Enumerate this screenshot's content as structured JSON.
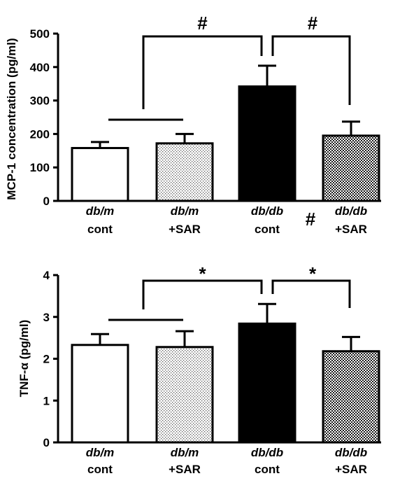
{
  "chart_data": [
    {
      "type": "bar",
      "title": "",
      "xlabel": "",
      "ylabel": "MCP-1  concentration  (pg/ml)",
      "ylim": [
        0,
        500
      ],
      "yticks": [
        "0",
        "100",
        "200",
        "300",
        "400",
        "500"
      ],
      "categories": [
        {
          "line1": "db/m",
          "line2": "cont"
        },
        {
          "line1": "db/m",
          "line2": "+SAR"
        },
        {
          "line1": "db/db",
          "line2": "cont"
        },
        {
          "line1": "db/db",
          "line2": "+SAR"
        }
      ],
      "values": [
        158,
        172,
        342,
        195
      ],
      "errors": [
        18,
        28,
        62,
        42
      ],
      "fills": [
        "white",
        "dots",
        "black",
        "checker"
      ],
      "significance": [
        {
          "symbol": "#",
          "from_group": 0.5,
          "to_group": 2
        },
        {
          "symbol": "#",
          "from_group": 2,
          "to_group": 3
        }
      ],
      "extra_marks": [
        {
          "symbol": "#",
          "between": [
            2,
            3
          ]
        }
      ]
    },
    {
      "type": "bar",
      "title": "",
      "xlabel": "",
      "ylabel": "TNF-α  (pg/ml)",
      "ylim": [
        0,
        4
      ],
      "yticks": [
        "0",
        "1",
        "2",
        "3",
        "4"
      ],
      "categories": [
        {
          "line1": "db/m",
          "line2": "cont"
        },
        {
          "line1": "db/m",
          "line2": "+SAR"
        },
        {
          "line1": "db/db",
          "line2": "cont"
        },
        {
          "line1": "db/db",
          "line2": "+SAR"
        }
      ],
      "values": [
        2.33,
        2.28,
        2.84,
        2.18
      ],
      "errors": [
        0.26,
        0.38,
        0.47,
        0.34
      ],
      "fills": [
        "white",
        "dots",
        "black",
        "checker"
      ],
      "significance": [
        {
          "symbol": "*",
          "from_group": 0.5,
          "to_group": 2
        },
        {
          "symbol": "*",
          "from_group": 2,
          "to_group": 3
        }
      ],
      "extra_marks": []
    }
  ]
}
